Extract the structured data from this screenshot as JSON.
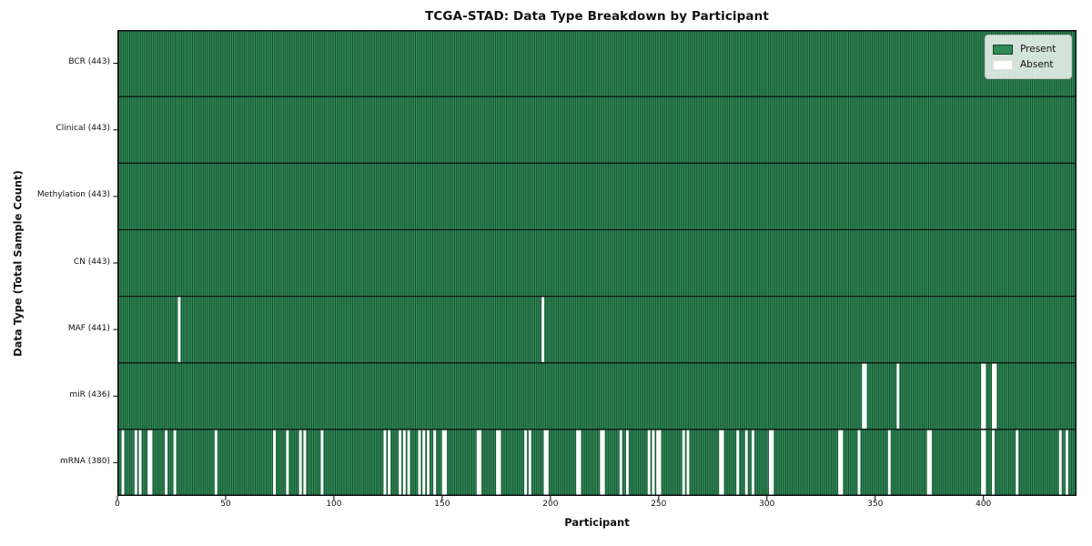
{
  "title": "TCGA-STAD: Data Type Breakdown by Participant",
  "xlabel": "Participant",
  "ylabel": "Data Type (Total Sample Count)",
  "legend": {
    "items": [
      {
        "label": "Present",
        "color": "#2e8b57",
        "edge": "#123f28"
      },
      {
        "label": "Absent",
        "color": "#ffffff",
        "edge": "#e0e0e0"
      }
    ]
  },
  "colors": {
    "present_fill": "#2e8b57",
    "bar_edge": "#16422b",
    "absent_fill": "#ffffff",
    "spine": "#0d0d0d",
    "text": "#111111"
  },
  "x_ticks": [
    0,
    50,
    100,
    150,
    200,
    250,
    300,
    350,
    400
  ],
  "chart_data": {
    "type": "heatmap",
    "title": "TCGA-STAD: Data Type Breakdown by Participant",
    "xlabel": "Participant",
    "ylabel": "Data Type (Total Sample Count)",
    "xlim": [
      0,
      443
    ],
    "n_participants": 443,
    "legend": [
      "Present",
      "Absent"
    ],
    "legend_position": "upper right",
    "grid": false,
    "rows": [
      {
        "name": "BCR",
        "label": "BCR (443)",
        "present_count": 443,
        "absent": []
      },
      {
        "name": "Clinical",
        "label": "Clinical (443)",
        "present_count": 443,
        "absent": []
      },
      {
        "name": "Methylation",
        "label": "Methylation (443)",
        "present_count": 443,
        "absent": []
      },
      {
        "name": "CN",
        "label": "CN (443)",
        "present_count": 443,
        "absent": []
      },
      {
        "name": "MAF",
        "label": "MAF (441)",
        "present_count": 441,
        "absent": [
          28,
          196
        ]
      },
      {
        "name": "miR",
        "label": "miR (436)",
        "present_count": 436,
        "absent": [
          344,
          345,
          360,
          399,
          400,
          404,
          405
        ]
      },
      {
        "name": "mRNA",
        "label": "mRNA (380)",
        "present_count": 380,
        "absent": [
          2,
          8,
          10,
          14,
          15,
          22,
          26,
          45,
          72,
          78,
          84,
          86,
          94,
          123,
          125,
          130,
          132,
          134,
          139,
          141,
          143,
          146,
          150,
          151,
          166,
          167,
          175,
          176,
          188,
          190,
          197,
          198,
          212,
          213,
          223,
          224,
          232,
          235,
          245,
          247,
          249,
          250,
          261,
          263,
          278,
          279,
          286,
          290,
          293,
          301,
          302,
          333,
          334,
          342,
          356,
          374,
          375,
          399,
          400,
          404,
          415,
          435,
          438
        ]
      }
    ]
  }
}
